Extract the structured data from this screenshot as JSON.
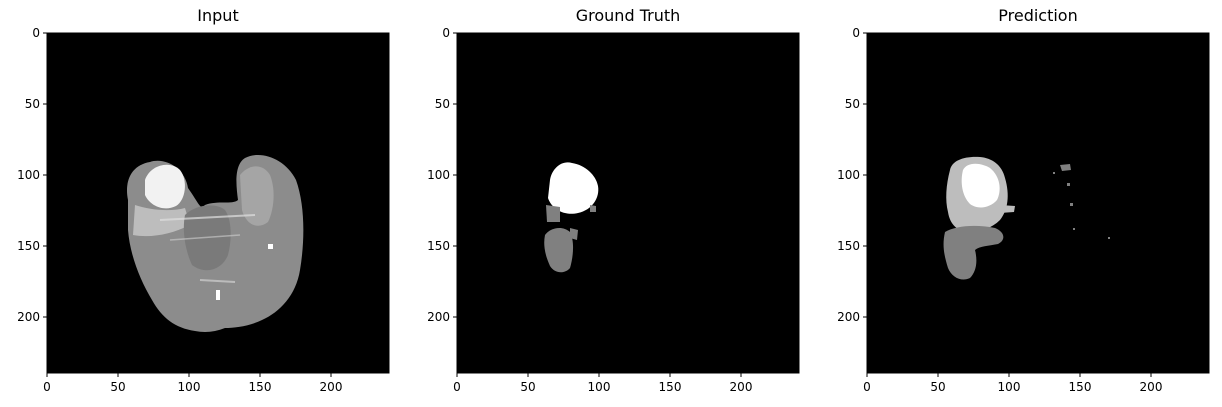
{
  "figure": {
    "panels": [
      {
        "id": "input",
        "title": "Input"
      },
      {
        "id": "ground-truth",
        "title": "Ground Truth"
      },
      {
        "id": "prediction",
        "title": "Prediction"
      }
    ],
    "x_ticks": [
      "0",
      "50",
      "100",
      "150",
      "200"
    ],
    "y_ticks": [
      "0",
      "50",
      "100",
      "150",
      "200"
    ],
    "colors": {
      "background": "#000000",
      "white_class": "#ffffff",
      "gray_class": "#808080",
      "light_gray_class": "#bdbdbd",
      "tissue_gray": "#8e8e8e"
    },
    "image_extent": {
      "x": [
        0,
        240
      ],
      "y": [
        0,
        240
      ]
    }
  }
}
